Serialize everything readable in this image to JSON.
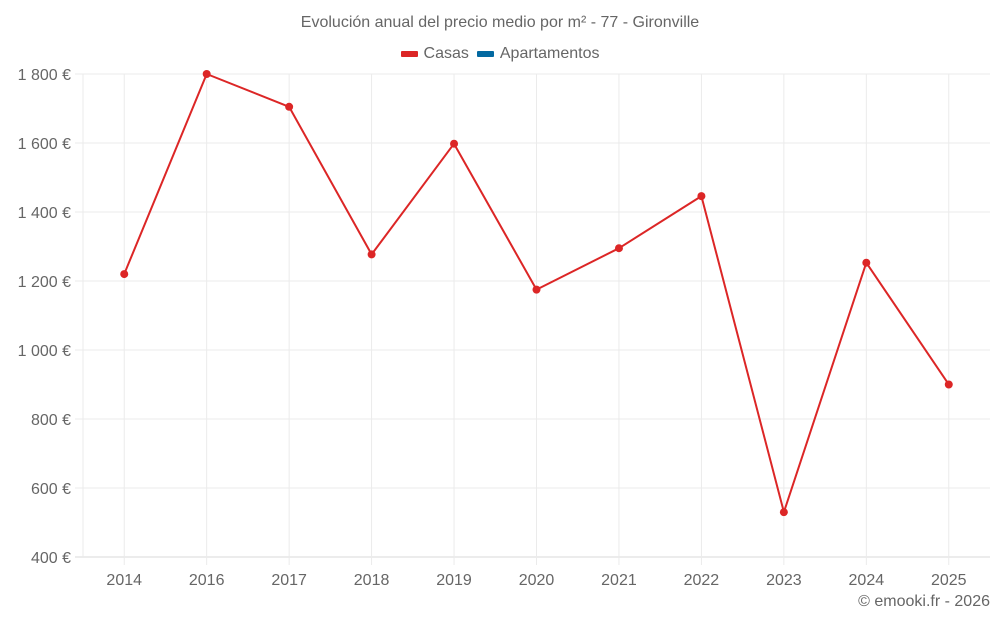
{
  "chart_data": {
    "type": "line",
    "title": "Evolución anual del precio medio por m² - 77 - Gironville",
    "xlabel": "",
    "ylabel": "",
    "categories": [
      "2014",
      "2016",
      "2017",
      "2018",
      "2019",
      "2020",
      "2021",
      "2022",
      "2023",
      "2024",
      "2025"
    ],
    "series": [
      {
        "name": "Casas",
        "color": "#dc2626",
        "values": [
          1220,
          1800,
          1705,
          1277,
          1598,
          1175,
          1295,
          1446,
          530,
          1253,
          900
        ]
      },
      {
        "name": "Apartamentos",
        "color": "#0369a1",
        "values": []
      }
    ],
    "ylim": [
      400,
      1800
    ],
    "yticks": [
      400,
      600,
      800,
      1000,
      1200,
      1400,
      1600,
      1800
    ],
    "ytick_labels": [
      "400 €",
      "600 €",
      "800 €",
      "1 000 €",
      "1 200 €",
      "1 400 €",
      "1 600 €",
      "1 800 €"
    ],
    "grid": true,
    "legend_position": "top"
  },
  "title": "Evolución anual del precio medio por m² - 77 - Gironville",
  "legend": [
    {
      "label": "Casas",
      "color": "#dc2626"
    },
    {
      "label": "Apartamentos",
      "color": "#0369a1"
    }
  ],
  "credit": "© emooki.fr - 2026"
}
